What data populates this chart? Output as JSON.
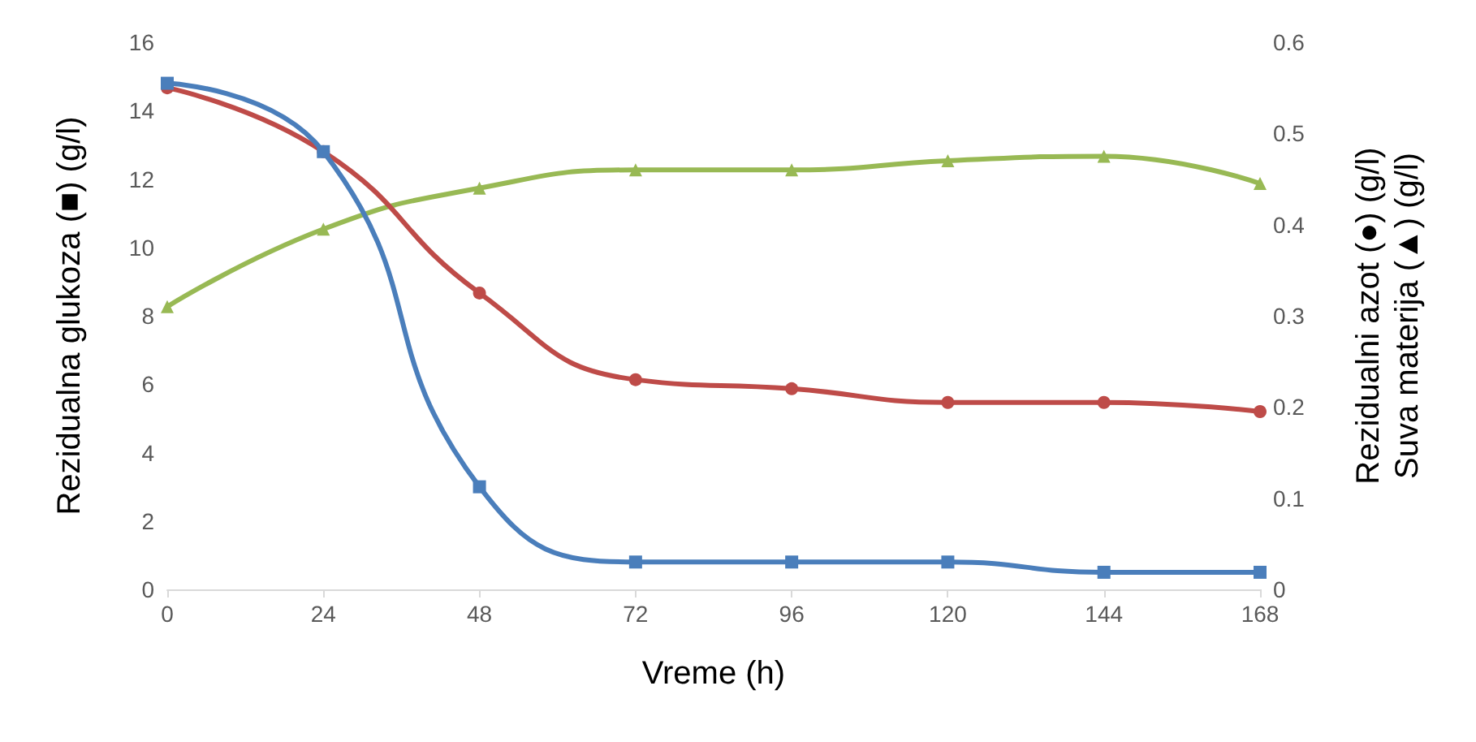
{
  "chart_data": {
    "type": "line",
    "xlabel": "Vreme (h)",
    "ylabel": "Rezidualna glukoza (■) (g/l)",
    "y2label": "Rezidualni azot (●) (g/l)\nSuva materija (▲) (g/l)",
    "x": [
      0,
      24,
      48,
      72,
      96,
      120,
      144,
      168
    ],
    "xlim": [
      0,
      168
    ],
    "xticks": [
      0,
      24,
      48,
      72,
      96,
      120,
      144,
      168
    ],
    "ylim": [
      0,
      16
    ],
    "yticks": [
      0,
      2,
      4,
      6,
      8,
      10,
      12,
      14,
      16
    ],
    "y2lim": [
      0,
      0.6
    ],
    "y2ticks": [
      0,
      0.1,
      0.2,
      0.3,
      0.4,
      0.5,
      0.6
    ],
    "grid": false,
    "line_style": "solid",
    "series": [
      {
        "color": "#4a7ebb",
        "marker": "square",
        "values": [
          14.8,
          12.8,
          3.0,
          0.8,
          0.8,
          0.8,
          0.5,
          0.5
        ]
      },
      {
        "color": "#be4b48",
        "marker": "circle",
        "axis": "y2",
        "values": [
          0.55,
          0.48,
          0.325,
          0.23,
          0.22,
          0.205,
          0.205,
          0.195
        ]
      },
      {
        "color": "#98b954",
        "marker": "triangle",
        "axis": "y2",
        "values": [
          0.31,
          0.395,
          0.44,
          0.46,
          0.46,
          0.47,
          0.475,
          0.445
        ]
      }
    ]
  }
}
